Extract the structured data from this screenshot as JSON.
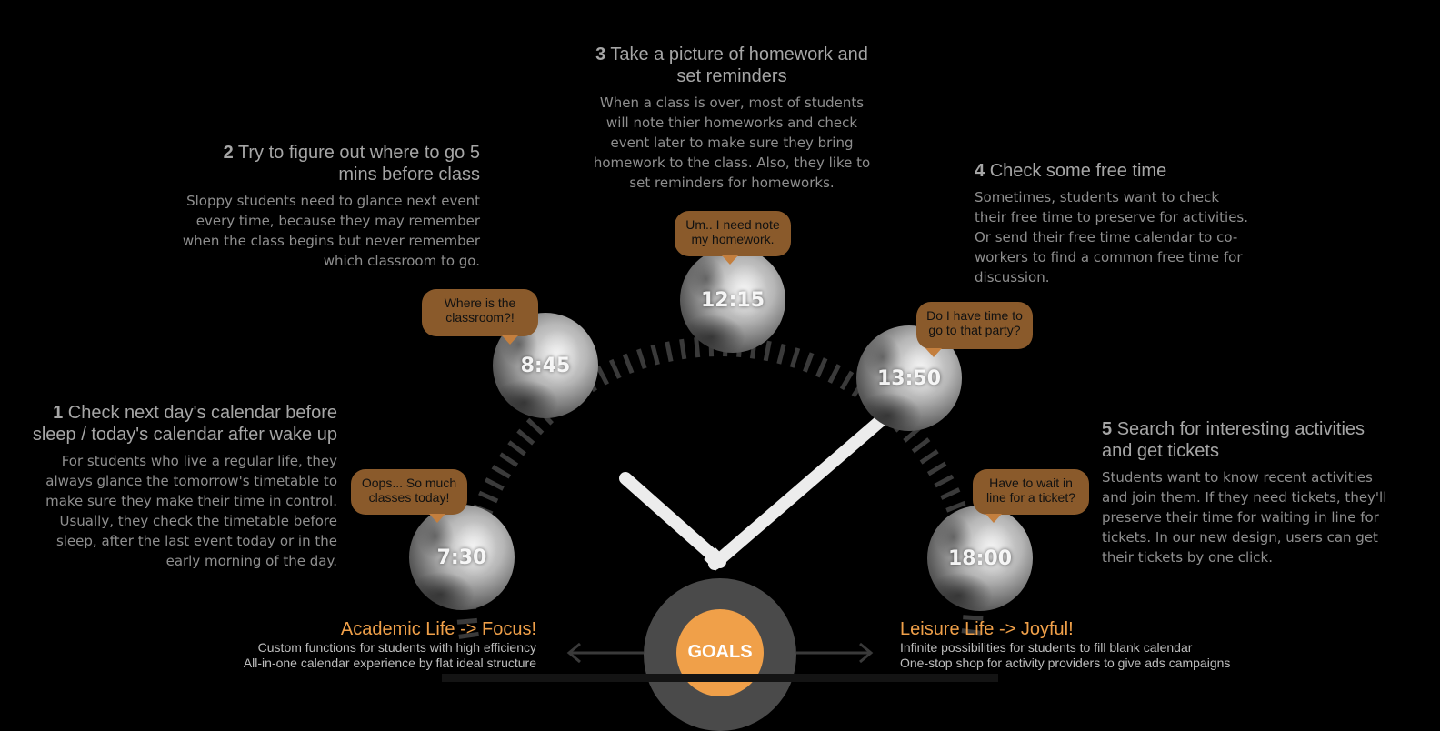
{
  "steps": [
    {
      "id": "1",
      "number": "1",
      "title": "Check next day's calendar before sleep / today's calendar after wake up",
      "body": "For students who live a regular life, they always glance the tomorrow's timetable to make sure they make their time in control. Usually, they check the timetable before sleep, after the last event today or in the early morning of the day."
    },
    {
      "id": "2",
      "number": "2",
      "title": "Try to figure out where to go 5 mins before class",
      "body": "Sloppy students need to glance next event every time, because they may remember when the class begins but never remember which classroom to go."
    },
    {
      "id": "3",
      "number": "3",
      "title": "Take a picture of homework and set reminders",
      "body": "When a class is over, most of students will note thier homeworks and check event later to make sure they bring homework to the class. Also, they like to set reminders for homeworks."
    },
    {
      "id": "4",
      "number": "4",
      "title": "Check some free time",
      "body": "Sometimes, students want to check their free time to preserve for activities. Or send their free time calendar to co-workers to find a common free time for discussion."
    },
    {
      "id": "5",
      "number": "5",
      "title": "Search for interesting activities and get tickets",
      "body": "Students want to know recent activities and join them. If they need tickets, they'll preserve their time for waiting in line for tickets. In our new design, users can get their tickets by one click."
    }
  ],
  "moments": [
    {
      "time": "7:30",
      "bubble": "Oops... So much classes today!"
    },
    {
      "time": "8:45",
      "bubble": "Where is the classroom?!"
    },
    {
      "time": "12:15",
      "bubble": "Um.. I need note my homework."
    },
    {
      "time": "13:50",
      "bubble": "Do I have time to go to that party?"
    },
    {
      "time": "18:00",
      "bubble": "Have to wait in line for a ticket?"
    }
  ],
  "goals": {
    "label": "GOALS"
  },
  "academic": {
    "heading": "Academic Life -> Focus!",
    "lines": [
      "Custom functions for students with high efficiency",
      "All-in-one calendar experience by flat ideal structure"
    ]
  },
  "leisure": {
    "heading": "Leisure Life -> Joyful!",
    "lines": [
      "Infinite possibilities for students to fill blank calendar",
      "One-stop shop for activity providers to give ads campaigns"
    ]
  },
  "colors": {
    "accent": "#f0a049",
    "bubble": "#8a5a2b",
    "ring": "#4a4a4a",
    "hand": "#ececec",
    "tick": "#3a3a3a"
  }
}
